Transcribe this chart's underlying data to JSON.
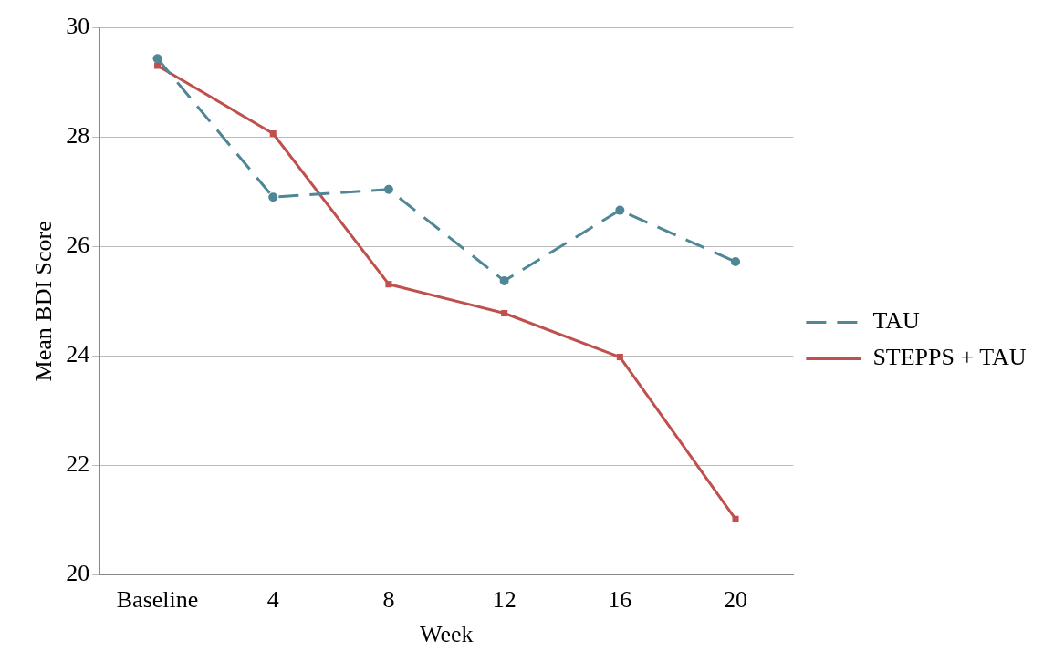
{
  "chart_data": {
    "type": "line",
    "xlabel": "Week",
    "ylabel": "Mean BDI Score",
    "categories": [
      "Baseline",
      "4",
      "8",
      "12",
      "16",
      "20"
    ],
    "series": [
      {
        "name": "TAU",
        "color": "#4f8796",
        "values": [
          29.43,
          26.9,
          27.04,
          25.37,
          26.66,
          25.72
        ],
        "marker": "circle",
        "line_style": "dashed"
      },
      {
        "name": "STEPPS + TAU",
        "color": "#c0504d",
        "values": [
          29.3,
          28.06,
          25.31,
          24.78,
          23.98,
          21.02
        ],
        "marker": "square",
        "line_style": "solid"
      }
    ],
    "ylim": [
      20,
      30
    ],
    "yticks": [
      20,
      22,
      24,
      26,
      28,
      30
    ],
    "grid": "y",
    "legend": "right"
  }
}
